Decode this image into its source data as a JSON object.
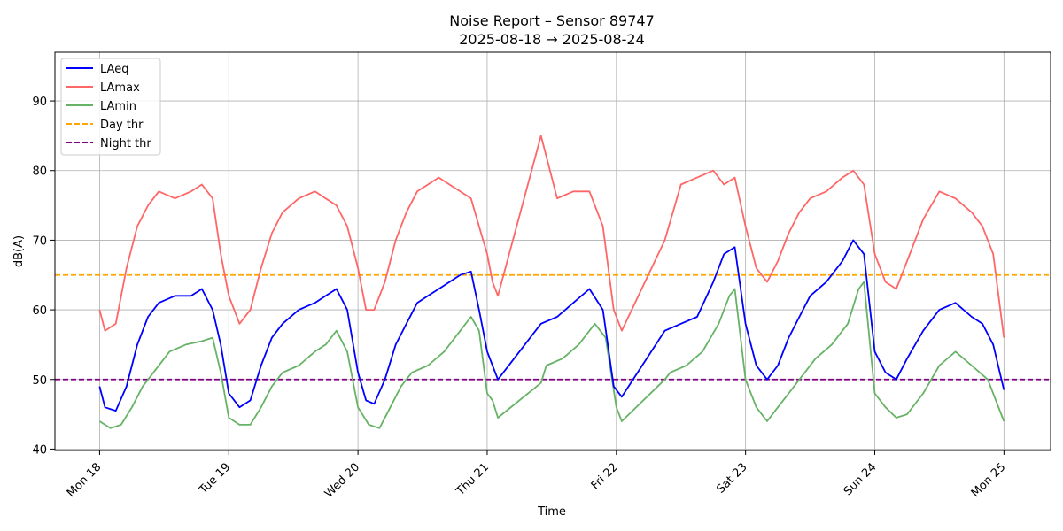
{
  "chart_data": {
    "type": "line",
    "title": "Noise Report – Sensor 89747",
    "subtitle": "2025-08-18 → 2025-08-24",
    "xlabel": "Time",
    "ylabel": "dB(A)",
    "ylim": [
      39.8,
      97
    ],
    "xlim": [
      "2025-08-17T15:42",
      "2025-08-25T08:40"
    ],
    "y_ticks": [
      40,
      50,
      60,
      70,
      80,
      90
    ],
    "x_ticks": [
      {
        "date": "2025-08-18T00:00",
        "label": "Mon 18"
      },
      {
        "date": "2025-08-19T00:00",
        "label": "Tue 19"
      },
      {
        "date": "2025-08-20T00:00",
        "label": "Wed 20"
      },
      {
        "date": "2025-08-21T00:00",
        "label": "Thu 21"
      },
      {
        "date": "2025-08-22T00:00",
        "label": "Fri 22"
      },
      {
        "date": "2025-08-23T00:00",
        "label": "Sat 23"
      },
      {
        "date": "2025-08-24T00:00",
        "label": "Sun 24"
      },
      {
        "date": "2025-08-25T00:00",
        "label": "Mon 25"
      }
    ],
    "grid": true,
    "legend_position": "top-left",
    "thresholds": [
      {
        "name": "Day thr",
        "value": 65,
        "color": "#ffa500",
        "dash": true
      },
      {
        "name": "Night thr",
        "value": 50,
        "color": "#800080",
        "dash": true
      }
    ],
    "series": [
      {
        "name": "LAeq",
        "color": "#0000ff",
        "points": [
          [
            "2025-08-18T00:00",
            49
          ],
          [
            "2025-08-18T01:00",
            46
          ],
          [
            "2025-08-18T03:00",
            45.5
          ],
          [
            "2025-08-18T05:00",
            49
          ],
          [
            "2025-08-18T07:00",
            55
          ],
          [
            "2025-08-18T09:00",
            59
          ],
          [
            "2025-08-18T11:00",
            61
          ],
          [
            "2025-08-18T14:00",
            62
          ],
          [
            "2025-08-18T17:00",
            62
          ],
          [
            "2025-08-18T19:00",
            63
          ],
          [
            "2025-08-18T21:00",
            60
          ],
          [
            "2025-08-18T22:30",
            55
          ],
          [
            "2025-08-19T00:00",
            48
          ],
          [
            "2025-08-19T02:00",
            46
          ],
          [
            "2025-08-19T04:00",
            47
          ],
          [
            "2025-08-19T06:00",
            52
          ],
          [
            "2025-08-19T08:00",
            56
          ],
          [
            "2025-08-19T10:00",
            58
          ],
          [
            "2025-08-19T13:00",
            60
          ],
          [
            "2025-08-19T16:00",
            61
          ],
          [
            "2025-08-19T18:00",
            62
          ],
          [
            "2025-08-19T20:00",
            63
          ],
          [
            "2025-08-19T22:00",
            60
          ],
          [
            "2025-08-20T00:00",
            51
          ],
          [
            "2025-08-20T01:30",
            47
          ],
          [
            "2025-08-20T03:00",
            46.5
          ],
          [
            "2025-08-20T05:00",
            50
          ],
          [
            "2025-08-20T07:00",
            55
          ],
          [
            "2025-08-20T09:00",
            58
          ],
          [
            "2025-08-20T11:00",
            61
          ],
          [
            "2025-08-20T13:00",
            62
          ],
          [
            "2025-08-20T15:00",
            63
          ],
          [
            "2025-08-20T17:00",
            64
          ],
          [
            "2025-08-20T19:00",
            65
          ],
          [
            "2025-08-20T21:00",
            65.5
          ],
          [
            "2025-08-20T22:30",
            60
          ],
          [
            "2025-08-21T00:00",
            54
          ],
          [
            "2025-08-21T01:00",
            52
          ],
          [
            "2025-08-21T02:00",
            50
          ],
          [
            "2025-08-21T10:00",
            58
          ],
          [
            "2025-08-21T13:00",
            59
          ],
          [
            "2025-08-21T16:00",
            61
          ],
          [
            "2025-08-21T19:00",
            63
          ],
          [
            "2025-08-21T21:30",
            60
          ],
          [
            "2025-08-21T23:30",
            49
          ],
          [
            "2025-08-22T01:00",
            47.5
          ],
          [
            "2025-08-22T09:00",
            57
          ],
          [
            "2025-08-22T12:00",
            58
          ],
          [
            "2025-08-22T15:00",
            59
          ],
          [
            "2025-08-22T18:00",
            64
          ],
          [
            "2025-08-22T20:00",
            68
          ],
          [
            "2025-08-22T22:00",
            69
          ],
          [
            "2025-08-23T00:00",
            58
          ],
          [
            "2025-08-23T02:00",
            52
          ],
          [
            "2025-08-23T04:00",
            50
          ],
          [
            "2025-08-23T06:00",
            52
          ],
          [
            "2025-08-23T08:00",
            56
          ],
          [
            "2025-08-23T10:00",
            59
          ],
          [
            "2025-08-23T12:00",
            62
          ],
          [
            "2025-08-23T15:00",
            64
          ],
          [
            "2025-08-23T18:00",
            67
          ],
          [
            "2025-08-23T20:00",
            70
          ],
          [
            "2025-08-23T22:00",
            68
          ],
          [
            "2025-08-24T00:00",
            54
          ],
          [
            "2025-08-24T02:00",
            51
          ],
          [
            "2025-08-24T04:00",
            50
          ],
          [
            "2025-08-24T06:00",
            53
          ],
          [
            "2025-08-24T09:00",
            57
          ],
          [
            "2025-08-24T12:00",
            60
          ],
          [
            "2025-08-24T15:00",
            61
          ],
          [
            "2025-08-24T18:00",
            59
          ],
          [
            "2025-08-24T20:00",
            58
          ],
          [
            "2025-08-24T22:00",
            55
          ],
          [
            "2025-08-25T00:00",
            48.5
          ]
        ]
      },
      {
        "name": "LAmax",
        "color": "#ff6666",
        "points": [
          [
            "2025-08-18T00:00",
            60
          ],
          [
            "2025-08-18T01:00",
            57
          ],
          [
            "2025-08-18T03:00",
            58
          ],
          [
            "2025-08-18T05:00",
            66
          ],
          [
            "2025-08-18T07:00",
            72
          ],
          [
            "2025-08-18T09:00",
            75
          ],
          [
            "2025-08-18T11:00",
            77
          ],
          [
            "2025-08-18T14:00",
            76
          ],
          [
            "2025-08-18T17:00",
            77
          ],
          [
            "2025-08-18T19:00",
            78
          ],
          [
            "2025-08-18T21:00",
            76
          ],
          [
            "2025-08-18T22:30",
            68
          ],
          [
            "2025-08-19T00:00",
            62
          ],
          [
            "2025-08-19T02:00",
            58
          ],
          [
            "2025-08-19T04:00",
            60
          ],
          [
            "2025-08-19T06:00",
            66
          ],
          [
            "2025-08-19T08:00",
            71
          ],
          [
            "2025-08-19T10:00",
            74
          ],
          [
            "2025-08-19T13:00",
            76
          ],
          [
            "2025-08-19T16:00",
            77
          ],
          [
            "2025-08-19T18:00",
            76
          ],
          [
            "2025-08-19T20:00",
            75
          ],
          [
            "2025-08-19T22:00",
            72
          ],
          [
            "2025-08-20T00:00",
            66
          ],
          [
            "2025-08-20T01:30",
            60
          ],
          [
            "2025-08-20T03:00",
            60
          ],
          [
            "2025-08-20T05:00",
            64
          ],
          [
            "2025-08-20T07:00",
            70
          ],
          [
            "2025-08-20T09:00",
            74
          ],
          [
            "2025-08-20T11:00",
            77
          ],
          [
            "2025-08-20T13:00",
            78
          ],
          [
            "2025-08-20T15:00",
            79
          ],
          [
            "2025-08-20T17:00",
            78
          ],
          [
            "2025-08-20T19:00",
            77
          ],
          [
            "2025-08-20T21:00",
            76
          ],
          [
            "2025-08-20T22:30",
            72
          ],
          [
            "2025-08-21T00:00",
            68
          ],
          [
            "2025-08-21T01:00",
            64
          ],
          [
            "2025-08-21T02:00",
            62
          ],
          [
            "2025-08-21T10:00",
            85
          ],
          [
            "2025-08-21T13:00",
            76
          ],
          [
            "2025-08-21T16:00",
            77
          ],
          [
            "2025-08-21T19:00",
            77
          ],
          [
            "2025-08-21T21:30",
            72
          ],
          [
            "2025-08-21T23:30",
            60
          ],
          [
            "2025-08-22T01:00",
            57
          ],
          [
            "2025-08-22T09:00",
            70
          ],
          [
            "2025-08-22T12:00",
            78
          ],
          [
            "2025-08-22T15:00",
            79
          ],
          [
            "2025-08-22T18:00",
            80
          ],
          [
            "2025-08-22T20:00",
            78
          ],
          [
            "2025-08-22T22:00",
            79
          ],
          [
            "2025-08-23T00:00",
            72
          ],
          [
            "2025-08-23T02:00",
            66
          ],
          [
            "2025-08-23T04:00",
            64
          ],
          [
            "2025-08-23T06:00",
            67
          ],
          [
            "2025-08-23T08:00",
            71
          ],
          [
            "2025-08-23T10:00",
            74
          ],
          [
            "2025-08-23T12:00",
            76
          ],
          [
            "2025-08-23T15:00",
            77
          ],
          [
            "2025-08-23T18:00",
            79
          ],
          [
            "2025-08-23T20:00",
            80
          ],
          [
            "2025-08-23T22:00",
            78
          ],
          [
            "2025-08-24T00:00",
            68
          ],
          [
            "2025-08-24T02:00",
            64
          ],
          [
            "2025-08-24T04:00",
            63
          ],
          [
            "2025-08-24T06:00",
            67
          ],
          [
            "2025-08-24T09:00",
            73
          ],
          [
            "2025-08-24T12:00",
            77
          ],
          [
            "2025-08-24T15:00",
            76
          ],
          [
            "2025-08-24T18:00",
            74
          ],
          [
            "2025-08-24T20:00",
            72
          ],
          [
            "2025-08-24T22:00",
            68
          ],
          [
            "2025-08-25T00:00",
            56
          ]
        ]
      },
      {
        "name": "LAmin",
        "color": "#66b366",
        "points": [
          [
            "2025-08-18T00:00",
            44
          ],
          [
            "2025-08-18T02:00",
            43
          ],
          [
            "2025-08-18T04:00",
            43.5
          ],
          [
            "2025-08-18T06:00",
            46
          ],
          [
            "2025-08-18T08:00",
            49
          ],
          [
            "2025-08-18T10:00",
            51
          ],
          [
            "2025-08-18T13:00",
            54
          ],
          [
            "2025-08-18T16:00",
            55
          ],
          [
            "2025-08-18T19:00",
            55.5
          ],
          [
            "2025-08-18T21:00",
            56
          ],
          [
            "2025-08-18T22:30",
            51
          ],
          [
            "2025-08-19T00:00",
            44.5
          ],
          [
            "2025-08-19T02:00",
            43.5
          ],
          [
            "2025-08-19T04:00",
            43.5
          ],
          [
            "2025-08-19T06:00",
            46
          ],
          [
            "2025-08-19T08:00",
            49
          ],
          [
            "2025-08-19T10:00",
            51
          ],
          [
            "2025-08-19T13:00",
            52
          ],
          [
            "2025-08-19T16:00",
            54
          ],
          [
            "2025-08-19T18:00",
            55
          ],
          [
            "2025-08-19T20:00",
            57
          ],
          [
            "2025-08-19T22:00",
            54
          ],
          [
            "2025-08-20T00:00",
            46
          ],
          [
            "2025-08-20T02:00",
            43.5
          ],
          [
            "2025-08-20T04:00",
            43
          ],
          [
            "2025-08-20T06:00",
            46
          ],
          [
            "2025-08-20T08:00",
            49
          ],
          [
            "2025-08-20T10:00",
            51
          ],
          [
            "2025-08-20T13:00",
            52
          ],
          [
            "2025-08-20T16:00",
            54
          ],
          [
            "2025-08-20T19:00",
            57
          ],
          [
            "2025-08-20T21:00",
            59
          ],
          [
            "2025-08-20T22:30",
            57
          ],
          [
            "2025-08-21T00:00",
            48
          ],
          [
            "2025-08-21T01:00",
            47
          ],
          [
            "2025-08-21T02:00",
            44.5
          ],
          [
            "2025-08-21T10:00",
            49.5
          ],
          [
            "2025-08-21T11:00",
            52
          ],
          [
            "2025-08-21T14:00",
            53
          ],
          [
            "2025-08-21T17:00",
            55
          ],
          [
            "2025-08-21T20:00",
            58
          ],
          [
            "2025-08-21T22:00",
            56
          ],
          [
            "2025-08-22T00:00",
            46
          ],
          [
            "2025-08-22T01:00",
            44
          ],
          [
            "2025-08-22T09:00",
            50
          ],
          [
            "2025-08-22T10:00",
            51
          ],
          [
            "2025-08-22T13:00",
            52
          ],
          [
            "2025-08-22T16:00",
            54
          ],
          [
            "2025-08-22T19:00",
            58
          ],
          [
            "2025-08-22T21:00",
            62
          ],
          [
            "2025-08-22T22:00",
            63
          ],
          [
            "2025-08-23T00:00",
            50
          ],
          [
            "2025-08-23T02:00",
            46
          ],
          [
            "2025-08-23T04:00",
            44
          ],
          [
            "2025-08-23T06:00",
            46
          ],
          [
            "2025-08-23T08:00",
            48
          ],
          [
            "2025-08-23T10:00",
            50
          ],
          [
            "2025-08-23T13:00",
            53
          ],
          [
            "2025-08-23T16:00",
            55
          ],
          [
            "2025-08-23T19:00",
            58
          ],
          [
            "2025-08-23T21:00",
            63
          ],
          [
            "2025-08-23T22:00",
            64
          ],
          [
            "2025-08-24T00:00",
            48
          ],
          [
            "2025-08-24T02:00",
            46
          ],
          [
            "2025-08-24T04:00",
            44.5
          ],
          [
            "2025-08-24T06:00",
            45
          ],
          [
            "2025-08-24T09:00",
            48
          ],
          [
            "2025-08-24T12:00",
            52
          ],
          [
            "2025-08-24T15:00",
            54
          ],
          [
            "2025-08-24T18:00",
            52
          ],
          [
            "2025-08-24T21:00",
            50
          ],
          [
            "2025-08-25T00:00",
            44
          ]
        ]
      }
    ]
  }
}
